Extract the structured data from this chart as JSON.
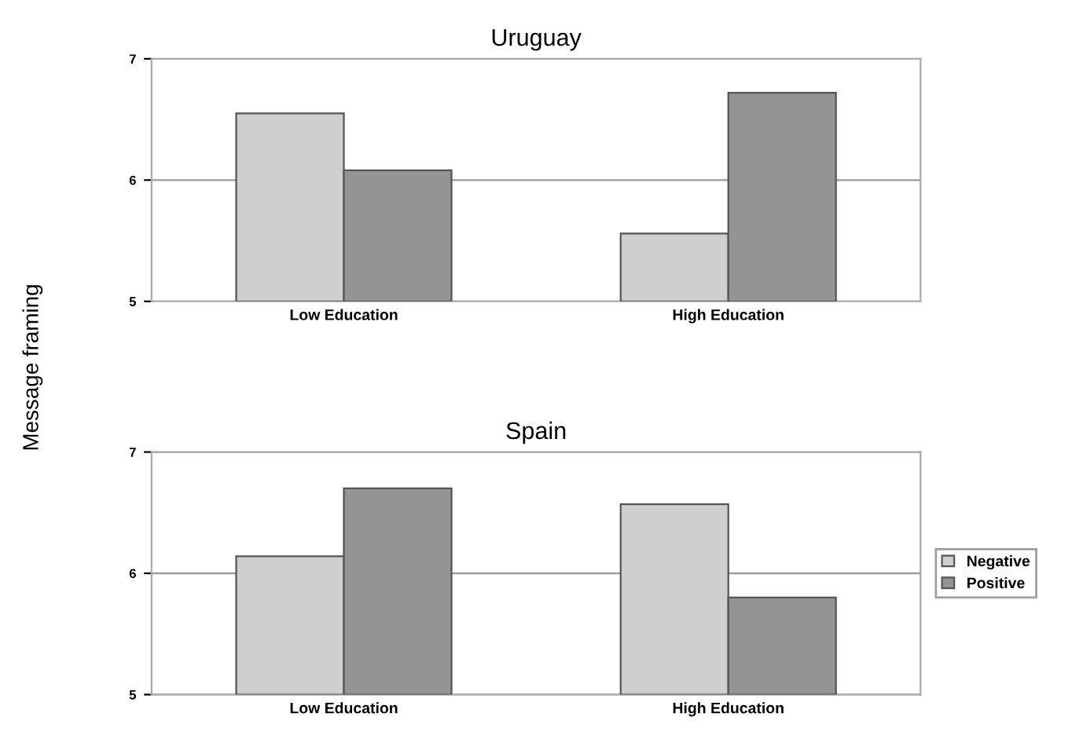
{
  "chart_data": [
    {
      "type": "bar",
      "title": "Uruguay",
      "ylabel": "Message framing",
      "categories": [
        "Low Education",
        "High Education"
      ],
      "ylim": [
        5,
        7
      ],
      "yticks": [
        5,
        6,
        7
      ],
      "grid": "y",
      "legend": false,
      "series": [
        {
          "color": "#cfcfcf",
          "values": [
            6.55,
            5.56
          ]
        },
        {
          "color": "#949494",
          "values": [
            6.08,
            6.72
          ]
        }
      ]
    },
    {
      "type": "bar",
      "title": "Spain",
      "categories": [
        "Low Education",
        "High Education"
      ],
      "ylim": [
        5,
        7
      ],
      "yticks": [
        5,
        6,
        7
      ],
      "grid": "y",
      "legend": "right",
      "series": [
        {
          "name": "Negative",
          "color": "#cfcfcf",
          "values": [
            6.14,
            6.57
          ]
        },
        {
          "name": "Positive",
          "color": "#949494",
          "values": [
            6.7,
            5.8
          ]
        }
      ]
    }
  ]
}
